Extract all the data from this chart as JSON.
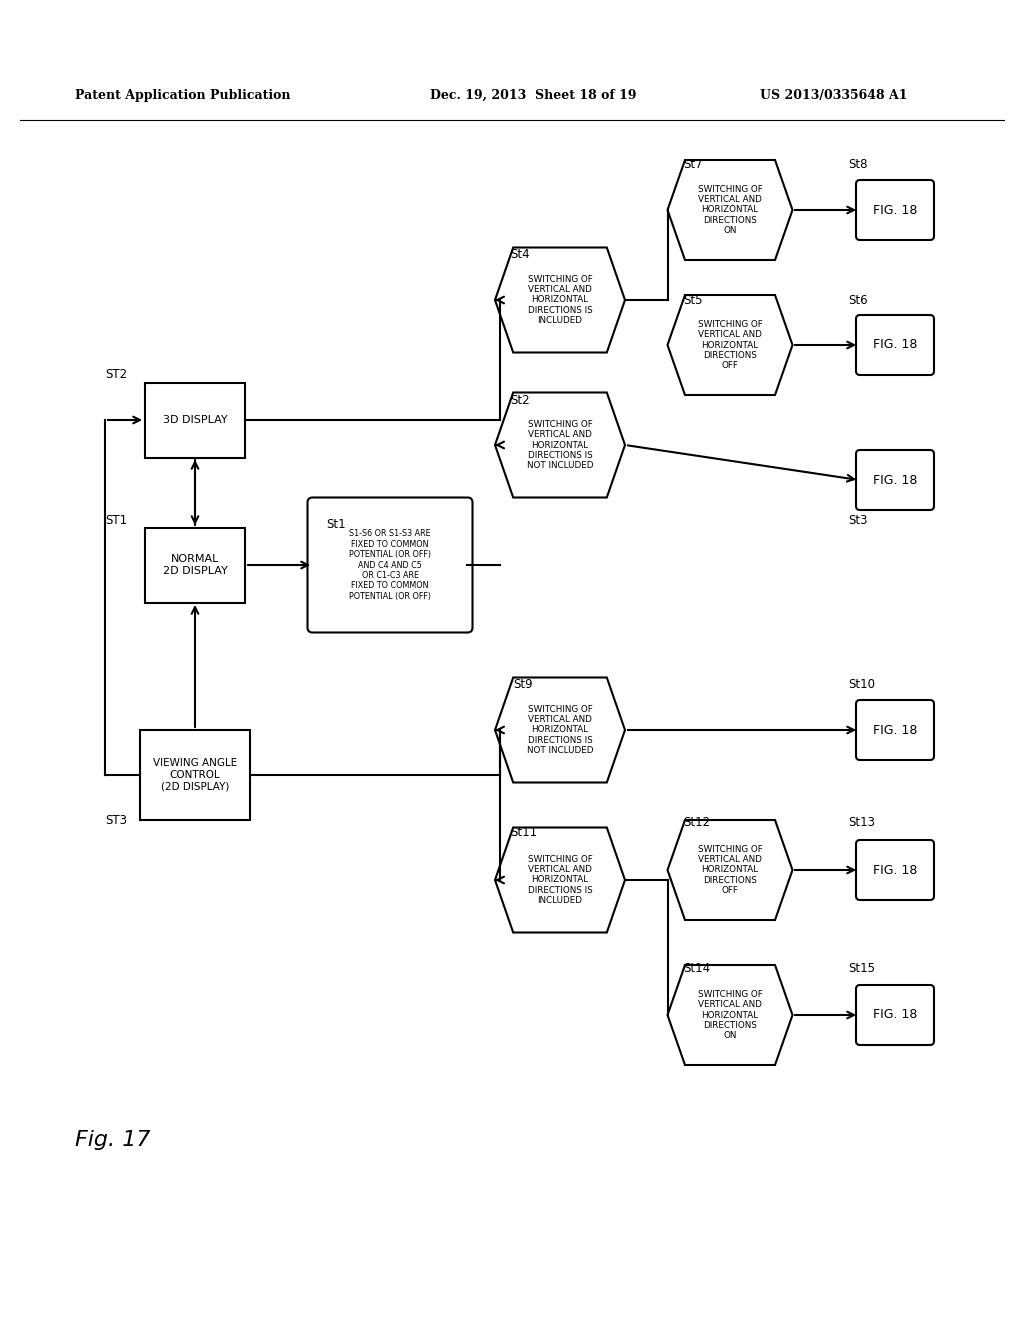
{
  "header_left": "Patent Application Publication",
  "header_mid": "Dec. 19, 2013  Sheet 18 of 19",
  "header_right": "US 2013/0335648 A1",
  "fig_label": "Fig. 17",
  "bg_color": "#ffffff"
}
